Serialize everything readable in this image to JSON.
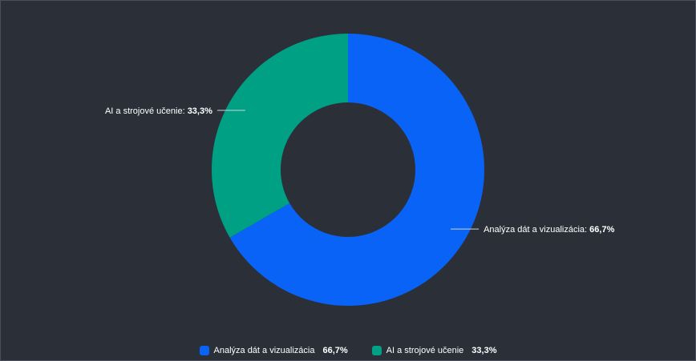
{
  "chart_data": {
    "type": "pie",
    "donut": true,
    "title": "",
    "slices": [
      {
        "label": "Analýza dát a vizualizácia",
        "value": 66.7,
        "value_text": "66,7%",
        "color": "#0a63f7"
      },
      {
        "label": "AI a strojové učenie",
        "value": 33.3,
        "value_text": "33,3%",
        "color": "#00a085"
      }
    ],
    "legend_position": "bottom"
  },
  "labels": {
    "sep": ":"
  }
}
